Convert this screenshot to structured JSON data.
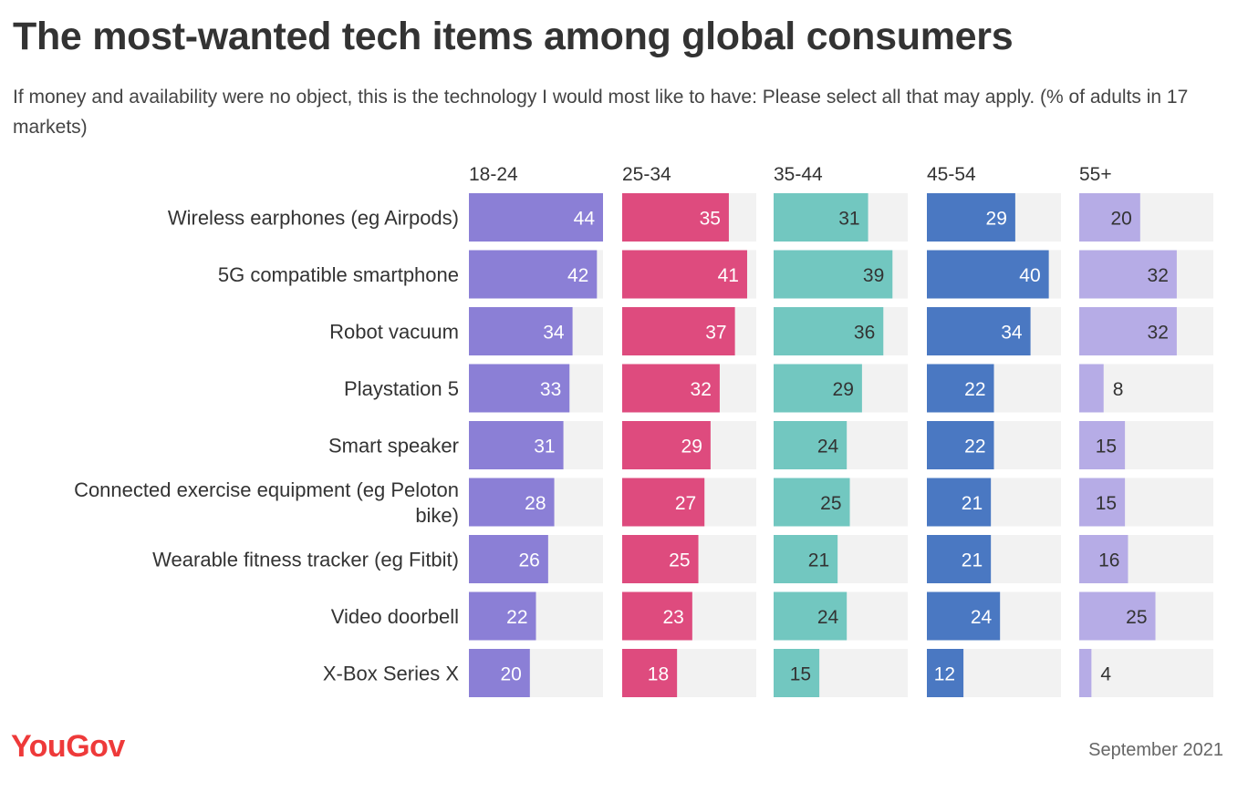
{
  "title": "The most-wanted tech items among global consumers",
  "subtitle": "If money and availability were no object, this is the technology I would most like to have: Please select all that may apply. (% of adults in 17 markets)",
  "brand": "YouGov",
  "date": "September 2021",
  "chart_data": {
    "type": "bar",
    "orientation": "horizontal",
    "layout": "small-multiples",
    "xlim": [
      0,
      44
    ],
    "grid": false,
    "legend": "none",
    "categories": [
      "Wireless earphones (eg Airpods)",
      "5G compatible smartphone",
      "Robot vacuum",
      "Playstation 5",
      "Smart speaker",
      "Connected exercise equipment (eg Peloton bike)",
      "Wearable fitness tracker (eg Fitbit)",
      "Video doorbell",
      "X-Box Series X"
    ],
    "series": [
      {
        "name": "18-24",
        "color": "#8b7fd6",
        "values": [
          44,
          42,
          34,
          33,
          31,
          28,
          26,
          22,
          20
        ]
      },
      {
        "name": "25-34",
        "color": "#de4b7e",
        "values": [
          35,
          41,
          37,
          32,
          29,
          27,
          25,
          23,
          18
        ]
      },
      {
        "name": "35-44",
        "color": "#72c7c0",
        "values": [
          31,
          39,
          36,
          29,
          24,
          25,
          21,
          24,
          15
        ]
      },
      {
        "name": "45-54",
        "color": "#4a78c2",
        "values": [
          29,
          40,
          34,
          22,
          22,
          21,
          21,
          24,
          12
        ]
      },
      {
        "name": "55+",
        "color": "#b6ace6",
        "values": [
          20,
          32,
          32,
          8,
          15,
          15,
          16,
          25,
          4
        ]
      }
    ],
    "track_color": "#f2f2f2"
  }
}
